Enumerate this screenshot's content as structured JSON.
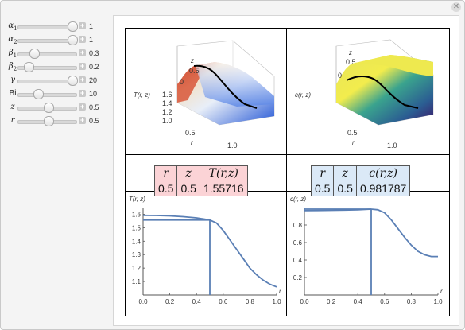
{
  "controls": [
    {
      "label_main": "α",
      "label_sub": "1",
      "value": "1",
      "pos": 0.96
    },
    {
      "label_main": "α",
      "label_sub": "2",
      "value": "1",
      "pos": 0.96
    },
    {
      "label_main": "β",
      "label_sub": "1",
      "value": "0.3",
      "pos": 0.22
    },
    {
      "label_main": "β",
      "label_sub": "2",
      "value": "0.2",
      "pos": 0.12
    },
    {
      "label_main": "γ",
      "label_sub": "",
      "value": "20",
      "pos": 0.96
    },
    {
      "label_main": "Bi",
      "label_sub": "",
      "value": "10",
      "pos": 0.3
    },
    {
      "label_main": "z",
      "label_sub": "",
      "value": "0.5",
      "pos": 0.5
    },
    {
      "label_main": "r",
      "label_sub": "",
      "value": "0.5",
      "pos": 0.5
    }
  ],
  "table_T": {
    "headers": [
      "r",
      "z",
      "T(r,z)"
    ],
    "values": [
      "0.5",
      "0.5",
      "1.55716"
    ]
  },
  "table_c": {
    "headers": [
      "r",
      "z",
      "c(r,z)"
    ],
    "values": [
      "0.5",
      "0.5",
      "0.981787"
    ]
  },
  "surf_T": {
    "zlabel": "z",
    "ylabel": "T(r, z)",
    "xlabel": "r",
    "z_ticks": [
      "0.5",
      "0"
    ],
    "y_ticks": [
      "1.6",
      "1.4",
      "1.2",
      "1.0"
    ],
    "x_ticks": [
      "0.5",
      "1.0"
    ]
  },
  "surf_c": {
    "zlabel": "z",
    "ylabel": "c(r, z)",
    "xlabel": "r",
    "z_ticks": [
      "0.5",
      "0"
    ],
    "x_ticks": [
      "0.5",
      "1.0"
    ]
  },
  "chart_data": [
    {
      "type": "line",
      "ylabel": "T(r, z)",
      "xlabel": "r",
      "xlim": [
        0,
        1
      ],
      "ylim": [
        1.0,
        1.65
      ],
      "x_ticks": [
        "0.0",
        "0.2",
        "0.4",
        "0.6",
        "0.8",
        "1.0"
      ],
      "y_ticks": [
        "1.6",
        "1.5",
        "1.4",
        "1.3",
        "1.2",
        "1.1"
      ],
      "x": [
        0.0,
        0.1,
        0.2,
        0.3,
        0.4,
        0.5,
        0.55,
        0.6,
        0.65,
        0.7,
        0.75,
        0.8,
        0.85,
        0.9,
        0.95,
        1.0
      ],
      "y": [
        1.592,
        1.591,
        1.588,
        1.582,
        1.573,
        1.557,
        1.535,
        1.48,
        1.41,
        1.34,
        1.27,
        1.2,
        1.15,
        1.11,
        1.08,
        1.06
      ],
      "marker": {
        "x": 0.5,
        "y": 1.557
      },
      "color": "#5a7fb5"
    },
    {
      "type": "line",
      "ylabel": "c(r, z)",
      "xlabel": "r",
      "xlim": [
        0,
        1
      ],
      "ylim": [
        0,
        1.0
      ],
      "x_ticks": [
        "0.0",
        "0.2",
        "0.4",
        "0.6",
        "0.8",
        "1.0"
      ],
      "y_ticks": [
        "0.8",
        "0.6",
        "0.4",
        "0.2"
      ],
      "x": [
        0.0,
        0.1,
        0.2,
        0.3,
        0.4,
        0.5,
        0.55,
        0.6,
        0.65,
        0.7,
        0.75,
        0.8,
        0.85,
        0.9,
        0.95,
        1.0
      ],
      "y": [
        0.965,
        0.966,
        0.968,
        0.971,
        0.975,
        0.982,
        0.975,
        0.94,
        0.86,
        0.76,
        0.66,
        0.57,
        0.5,
        0.46,
        0.44,
        0.44
      ],
      "marker": {
        "x": 0.5,
        "y": 0.982
      },
      "color": "#5a7fb5"
    }
  ]
}
